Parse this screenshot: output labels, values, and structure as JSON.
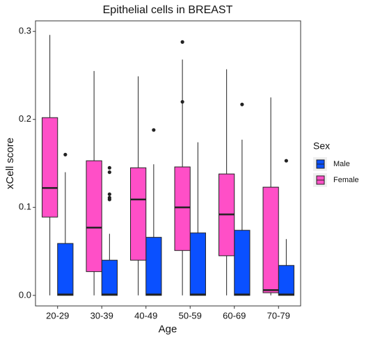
{
  "chart_data": {
    "type": "box",
    "title": "Epithelial cells in BREAST",
    "x_label": "Age",
    "y_label": "xCell score",
    "categories": [
      "20-29",
      "30-39",
      "40-49",
      "50-59",
      "60-69",
      "70-79"
    ],
    "ylim": [
      -0.012,
      0.312
    ],
    "yticks": [
      {
        "value": 0,
        "label": "0.0"
      },
      0.1,
      0.2,
      0.3
    ],
    "legend_title": "Sex",
    "legend": "right",
    "series": [
      {
        "name": "Male",
        "color": "#0a50ff",
        "boxes": [
          {
            "whislo": 0,
            "q1": 0,
            "med": 0.001,
            "q3": 0.059,
            "whishi": 0.14,
            "fliers": [
              0.16
            ]
          },
          {
            "whislo": 0,
            "q1": 0,
            "med": 0.001,
            "q3": 0.04,
            "whishi": 0.07,
            "fliers": [
              0.145,
              0.14,
              0.115,
              0.111,
              0.109
            ]
          },
          {
            "whislo": 0,
            "q1": 0,
            "med": 0.001,
            "q3": 0.066,
            "whishi": 0.149,
            "fliers": [
              0.188
            ]
          },
          {
            "whislo": 0,
            "q1": 0,
            "med": 0.001,
            "q3": 0.071,
            "whishi": 0.174,
            "fliers": []
          },
          {
            "whislo": 0,
            "q1": 0,
            "med": 0.001,
            "q3": 0.074,
            "whishi": 0.177,
            "fliers": [
              0.217
            ]
          },
          {
            "whislo": 0,
            "q1": 0,
            "med": 0.001,
            "q3": 0.034,
            "whishi": 0.064,
            "fliers": [
              0.153
            ]
          }
        ]
      },
      {
        "name": "Female",
        "color": "#ff4fc7",
        "boxes": [
          {
            "whislo": 0,
            "q1": 0.089,
            "med": 0.122,
            "q3": 0.202,
            "whishi": 0.296,
            "fliers": []
          },
          {
            "whislo": 0,
            "q1": 0.027,
            "med": 0.077,
            "q3": 0.153,
            "whishi": 0.255,
            "fliers": []
          },
          {
            "whislo": 0,
            "q1": 0.04,
            "med": 0.109,
            "q3": 0.145,
            "whishi": 0.249,
            "fliers": []
          },
          {
            "whislo": 0,
            "q1": 0.051,
            "med": 0.1,
            "q3": 0.146,
            "whishi": 0.268,
            "fliers": [
              0.288,
              0.22
            ]
          },
          {
            "whislo": 0,
            "q1": 0.045,
            "med": 0.092,
            "q3": 0.138,
            "whishi": 0.257,
            "fliers": []
          },
          {
            "whislo": 0,
            "q1": 0.003,
            "med": 0.006,
            "q3": 0.123,
            "whishi": 0.225,
            "fliers": []
          }
        ]
      }
    ]
  }
}
